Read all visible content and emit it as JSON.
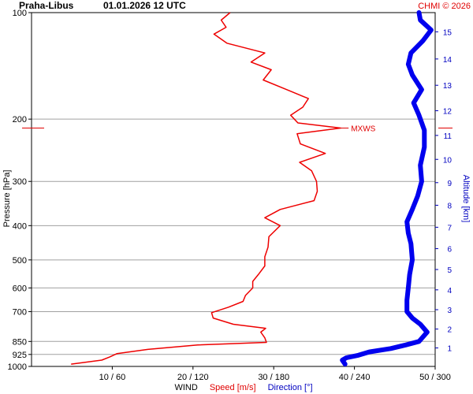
{
  "header": {
    "station": "Praha-Libus",
    "datetime": "01.01.2026 12 UTC",
    "credit": "CHMI © 2026"
  },
  "chart_data": {
    "type": "line",
    "title": "Praha-Libus 01.01.2026 12 UTC",
    "ylabel": "Pressure [hPa]",
    "y2label": "Altitude [km]",
    "xlabel": {
      "prefix": "WIND",
      "speed": "Speed [m/s]",
      "direction": "Direction [°]"
    },
    "y_scale": "log",
    "ylim": [
      1000,
      100
    ],
    "pressure_ticks": [
      "100",
      "200",
      "300",
      "400",
      "500",
      "600",
      "700",
      "850",
      "925",
      "1000"
    ],
    "speed_range_ms": [
      0,
      50
    ],
    "direction_range_deg": [
      0,
      300
    ],
    "x_ticks": [
      {
        "speed": 10,
        "label": "10 / 60"
      },
      {
        "speed": 20,
        "label": "20 / 120"
      },
      {
        "speed": 30,
        "label": "30 / 180"
      },
      {
        "speed": 40,
        "label": "40 / 240"
      },
      {
        "speed": 50,
        "label": "50 / 300"
      }
    ],
    "altitude_ticks_km": [
      "1",
      "2",
      "3",
      "4",
      "5",
      "6",
      "7",
      "8",
      "9",
      "10",
      "11",
      "12",
      "13",
      "14",
      "15"
    ],
    "max_wind": {
      "label": "MXWS",
      "pressure": 212,
      "speed": 38.3
    },
    "series": [
      {
        "name": "Speed [m/s]",
        "color": "#ee0000",
        "points": [
          [
            985,
            4.9
          ],
          [
            960,
            8.7
          ],
          [
            940,
            9.7
          ],
          [
            920,
            10.6
          ],
          [
            895,
            14.4
          ],
          [
            870,
            20.6
          ],
          [
            855,
            29.1
          ],
          [
            830,
            28.9
          ],
          [
            800,
            28.4
          ],
          [
            780,
            29.0
          ],
          [
            760,
            25.0
          ],
          [
            730,
            22.5
          ],
          [
            705,
            22.3
          ],
          [
            680,
            24.4
          ],
          [
            655,
            26.2
          ],
          [
            630,
            26.5
          ],
          [
            600,
            27.4
          ],
          [
            575,
            27.4
          ],
          [
            550,
            28.1
          ],
          [
            520,
            28.9
          ],
          [
            490,
            28.9
          ],
          [
            460,
            29.3
          ],
          [
            430,
            29.4
          ],
          [
            400,
            30.8
          ],
          [
            380,
            28.9
          ],
          [
            360,
            30.8
          ],
          [
            340,
            35.0
          ],
          [
            320,
            35.4
          ],
          [
            300,
            35.3
          ],
          [
            280,
            34.7
          ],
          [
            265,
            33.2
          ],
          [
            250,
            36.4
          ],
          [
            235,
            33.3
          ],
          [
            220,
            32.9
          ],
          [
            212,
            38.3
          ],
          [
            205,
            33.0
          ],
          [
            195,
            32.1
          ],
          [
            185,
            33.6
          ],
          [
            175,
            34.3
          ],
          [
            165,
            31.6
          ],
          [
            155,
            28.7
          ],
          [
            145,
            29.7
          ],
          [
            138,
            27.2
          ],
          [
            130,
            28.9
          ],
          [
            122,
            24.2
          ],
          [
            115,
            22.6
          ],
          [
            110,
            24.1
          ],
          [
            105,
            23.5
          ],
          [
            100,
            24.6
          ]
        ]
      },
      {
        "name": "Direction [°]",
        "color": "#0000ee",
        "points": [
          [
            985,
            233
          ],
          [
            960,
            231
          ],
          [
            945,
            234
          ],
          [
            930,
            243
          ],
          [
            910,
            251
          ],
          [
            890,
            267
          ],
          [
            870,
            278
          ],
          [
            850,
            288
          ],
          [
            800,
            294
          ],
          [
            760,
            289
          ],
          [
            730,
            283
          ],
          [
            700,
            279
          ],
          [
            650,
            279
          ],
          [
            600,
            280
          ],
          [
            550,
            281
          ],
          [
            500,
            283
          ],
          [
            450,
            282
          ],
          [
            420,
            280
          ],
          [
            390,
            279
          ],
          [
            360,
            283
          ],
          [
            330,
            287
          ],
          [
            300,
            290
          ],
          [
            270,
            289
          ],
          [
            240,
            292
          ],
          [
            215,
            292
          ],
          [
            195,
            288
          ],
          [
            180,
            284
          ],
          [
            165,
            290
          ],
          [
            150,
            283
          ],
          [
            140,
            280
          ],
          [
            130,
            282
          ],
          [
            120,
            291
          ],
          [
            112,
            297
          ],
          [
            105,
            289
          ],
          [
            100,
            288
          ]
        ]
      }
    ],
    "grid": true
  }
}
